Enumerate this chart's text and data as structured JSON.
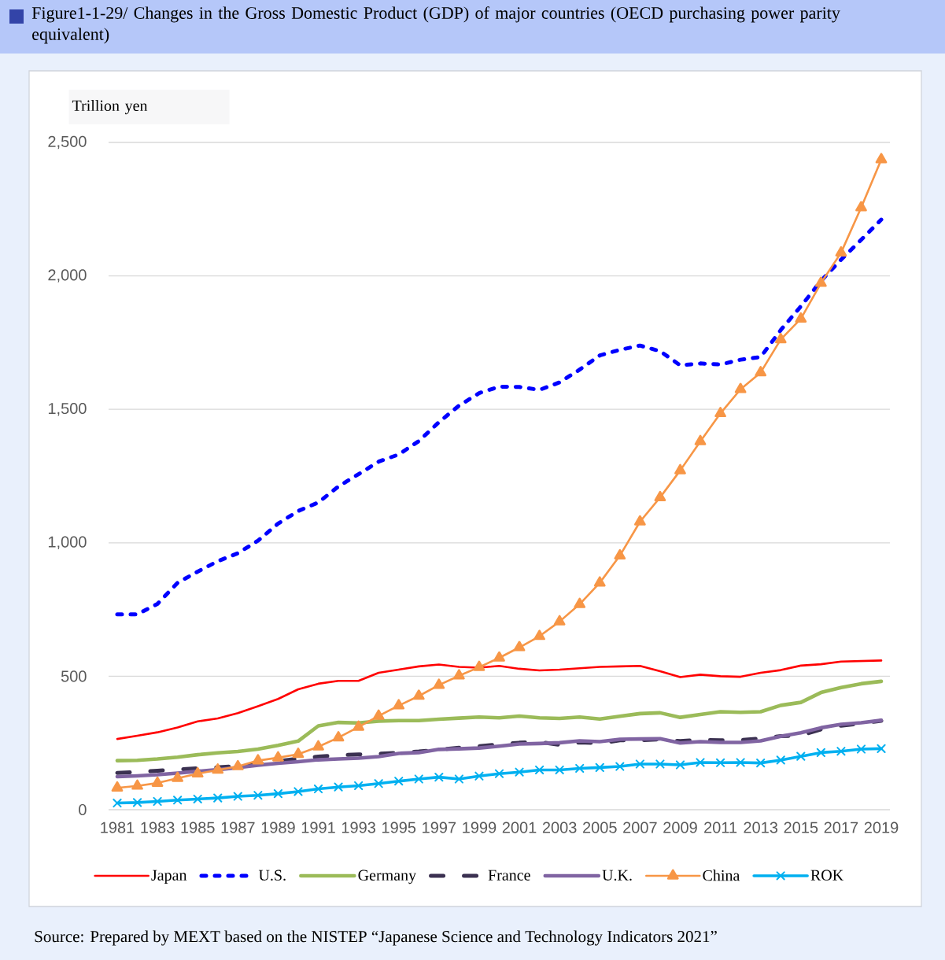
{
  "chart_data": {
    "type": "line",
    "title": "Figure1-1-29/ Changes in the Gross Domestic Product (GDP) of major countries (OECD purchasing power parity equivalent)",
    "ylabel": "Trillion yen",
    "annotations": [
      "Source: Prepared by MEXT based on the NISTEP “Japanese Science and Technology Indicators 2021”"
    ],
    "categories": [
      "1981",
      null,
      "1983",
      null,
      "1985",
      null,
      "1987",
      null,
      "1989",
      null,
      "1991",
      null,
      "1993",
      null,
      "1995",
      null,
      "1997",
      null,
      "1999",
      null,
      "2001",
      null,
      "2003",
      null,
      "2005",
      null,
      "2007",
      null,
      "2009",
      null,
      "2011",
      null,
      "2013",
      null,
      "2015",
      null,
      "2017",
      null,
      "2019"
    ],
    "series": [
      {
        "name": "Japan",
        "color": "#ff0000",
        "line_style": "solid",
        "values": [
          265,
          277,
          290,
          308,
          331,
          342,
          362,
          388,
          415,
          451,
          472,
          483,
          483,
          513,
          525,
          537,
          544,
          535,
          532,
          539,
          528,
          522,
          525,
          530,
          535,
          537,
          539,
          519,
          497,
          506,
          500,
          498,
          513,
          523,
          540,
          545,
          555,
          557,
          559
        ]
      },
      {
        "name": "U.S.",
        "color": "#0000ff",
        "line_style": "dashed",
        "values": [
          732,
          732,
          771,
          850,
          892,
          931,
          961,
          1008,
          1072,
          1119,
          1151,
          1211,
          1257,
          1304,
          1331,
          1381,
          1452,
          1514,
          1561,
          1585,
          1584,
          1573,
          1601,
          1649,
          1702,
          1723,
          1739,
          1718,
          1665,
          1672,
          1668,
          1686,
          1696,
          1797,
          1886,
          1981,
          2061,
          2135,
          2211
        ]
      },
      {
        "name": "Germany",
        "color": "#9bbb59",
        "line_style": "solid",
        "values": [
          184,
          185,
          190,
          197,
          206,
          213,
          218,
          227,
          241,
          257,
          314,
          327,
          325,
          332,
          334,
          334,
          339,
          343,
          347,
          344,
          351,
          344,
          342,
          347,
          340,
          350,
          360,
          363,
          346,
          357,
          367,
          365,
          367,
          391,
          402,
          439,
          458,
          472,
          481
        ]
      },
      {
        "name": "France",
        "color": "#3b3151",
        "line_style": "dashed",
        "values": [
          138,
          141,
          146,
          151,
          155,
          159,
          163,
          172,
          182,
          191,
          199,
          204,
          207,
          210,
          213,
          218,
          225,
          232,
          238,
          245,
          251,
          254,
          243,
          252,
          249,
          260,
          260,
          264,
          257,
          262,
          260,
          261,
          267,
          276,
          278,
          301,
          315,
          323,
          333
        ]
      },
      {
        "name": "U.K.",
        "color": "#8064a2",
        "line_style": "solid",
        "values": [
          124,
          127,
          131,
          137,
          144,
          150,
          158,
          167,
          174,
          180,
          187,
          190,
          193,
          199,
          211,
          214,
          226,
          228,
          231,
          238,
          246,
          248,
          251,
          258,
          255,
          264,
          265,
          266,
          250,
          255,
          252,
          252,
          258,
          275,
          288,
          307,
          320,
          326,
          335
        ]
      },
      {
        "name": "China",
        "color": "#f79646",
        "line_style": "solid",
        "marker": "triangle",
        "values": [
          82,
          89,
          100,
          118,
          135,
          149,
          162,
          184,
          195,
          208,
          236,
          270,
          310,
          351,
          390,
          426,
          467,
          502,
          534,
          569,
          608,
          650,
          705,
          770,
          850,
          952,
          1079,
          1170,
          1271,
          1380,
          1485,
          1575,
          1638,
          1762,
          1839,
          1973,
          2087,
          2256,
          2436
        ]
      },
      {
        "name": "ROK",
        "color": "#00b0f0",
        "line_style": "solid",
        "marker": "cross",
        "values": [
          25,
          27,
          31,
          36,
          40,
          44,
          50,
          54,
          60,
          68,
          78,
          85,
          90,
          98,
          107,
          115,
          122,
          115,
          126,
          135,
          141,
          149,
          149,
          155,
          158,
          162,
          171,
          171,
          168,
          177,
          176,
          177,
          175,
          186,
          200,
          214,
          219,
          227,
          229
        ]
      }
    ],
    "ylim": [
      0,
      2500
    ],
    "yticks": [
      0,
      500,
      {
        "value": 1000,
        "label": "1,000"
      },
      {
        "value": 1500,
        "label": "1,500"
      },
      {
        "value": 2000,
        "label": "2,000"
      },
      {
        "value": 2500,
        "label": "2,500"
      }
    ],
    "grid": "y",
    "legend": "bottom"
  }
}
